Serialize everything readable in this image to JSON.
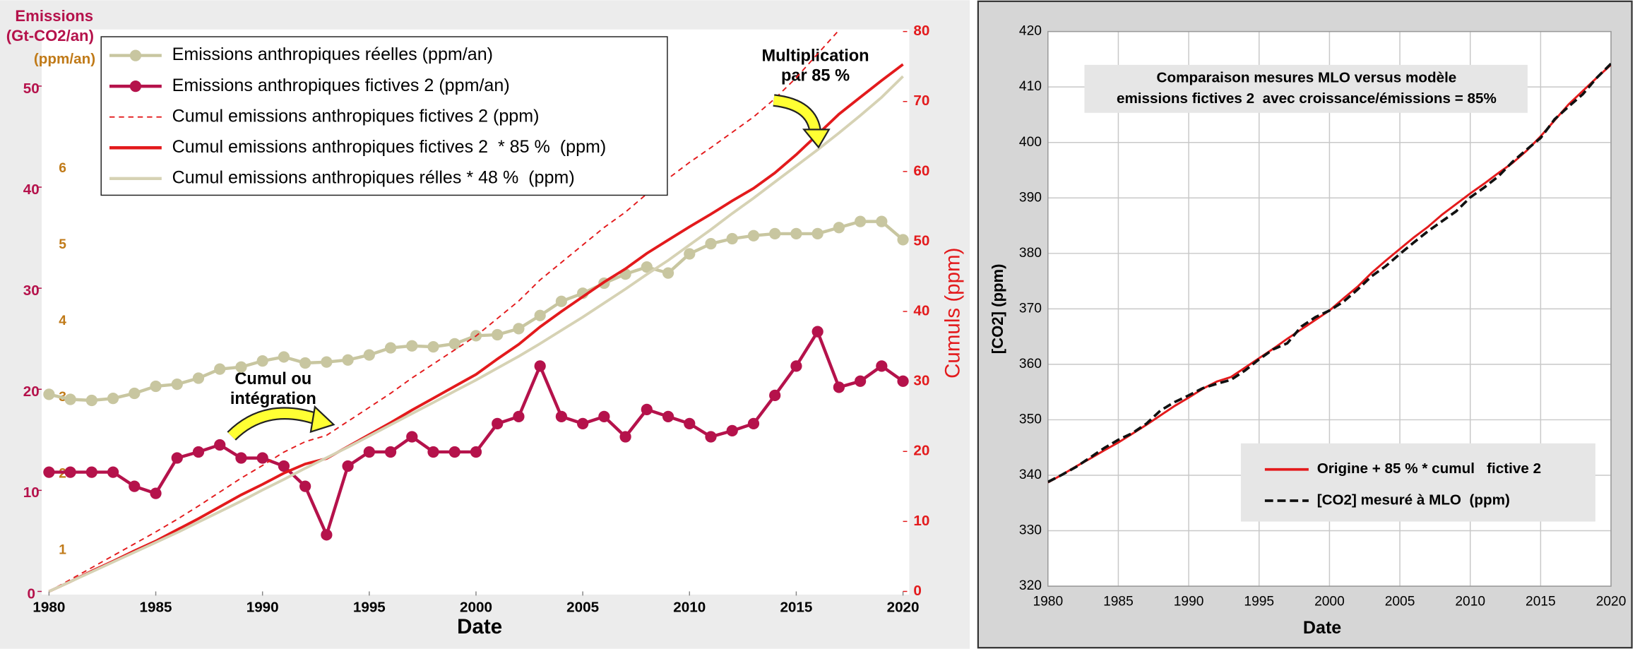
{
  "chart_data": [
    {
      "type": "line",
      "ylabel": [
        "Emissions",
        "(Gt-CO2/an)"
      ],
      "y3label": "(ppm/an)",
      "y2label": "Cumuls (ppm)",
      "xlabel": "Date",
      "annotations": [
        [
          "Cumul ou",
          "intégration"
        ],
        [
          "Multiplication",
          "par 85 %"
        ]
      ],
      "x": [
        1980,
        1981,
        1982,
        1983,
        1984,
        1985,
        1986,
        1987,
        1988,
        1989,
        1990,
        1991,
        1992,
        1993,
        1994,
        1995,
        1996,
        1997,
        1998,
        1999,
        2000,
        2001,
        2002,
        2003,
        2004,
        2005,
        2006,
        2007,
        2008,
        2009,
        2010,
        2011,
        2012,
        2013,
        2014,
        2015,
        2016,
        2017,
        2018,
        2019,
        2020
      ],
      "xlim": [
        1980,
        2020
      ],
      "xticks": [
        1980,
        1985,
        1990,
        1995,
        2000,
        2005,
        2010,
        2015,
        2020
      ],
      "ylim": [
        0,
        55.4
      ],
      "yticks": [
        0,
        10,
        20,
        30,
        40,
        50
      ],
      "y3lim": [
        0.23,
        7.57
      ],
      "y3ticks": [
        1,
        2,
        3,
        4,
        5,
        6
      ],
      "y2lim": [
        0,
        80
      ],
      "y2ticks": [
        0,
        10,
        20,
        30,
        40,
        50,
        60,
        70,
        80
      ],
      "legend": "top-left",
      "series": [
        {
          "name": "Emissions anthropiques réelles (ppm/an)",
          "color": "#c8c6a0",
          "marker": true,
          "values": [
            19.5,
            19.0,
            18.9,
            19.1,
            19.6,
            20.3,
            20.5,
            21.1,
            22.0,
            22.2,
            22.8,
            23.2,
            22.6,
            22.7,
            22.9,
            23.4,
            24.1,
            24.3,
            24.2,
            24.5,
            25.3,
            25.4,
            26.0,
            27.3,
            28.7,
            29.5,
            30.5,
            31.4,
            32.1,
            31.5,
            33.4,
            34.4,
            34.9,
            35.2,
            35.4,
            35.4,
            35.4,
            36.0,
            36.6,
            36.6,
            34.8
          ]
        },
        {
          "name": "Emissions anthropiques fictives 2 (ppm/an)",
          "color": "#b5124b",
          "marker": true,
          "values": [
            11.8,
            11.8,
            11.8,
            11.8,
            10.4,
            9.7,
            13.2,
            13.8,
            14.5,
            13.2,
            13.2,
            12.4,
            10.4,
            5.6,
            12.4,
            13.8,
            13.8,
            15.3,
            13.8,
            13.8,
            13.8,
            16.6,
            17.3,
            22.3,
            17.3,
            16.6,
            17.3,
            15.3,
            18.0,
            17.3,
            16.6,
            15.3,
            15.9,
            16.6,
            19.4,
            22.3,
            25.7,
            20.2,
            20.8,
            22.3,
            20.8
          ]
        },
        {
          "name": "Cumul emissions anthropiques fictives 2 (ppm)",
          "color": "#e31a1c",
          "style": "dashed",
          "axis": "y2",
          "values": [
            0,
            1.7,
            3.4,
            5.1,
            6.8,
            8.5,
            10.3,
            12.2,
            14.2,
            16.2,
            18.0,
            19.9,
            21.4,
            22.3,
            24.3,
            26.3,
            28.3,
            30.5,
            32.5,
            34.5,
            36.5,
            39.0,
            41.5,
            44.5,
            47.0,
            49.5,
            52.0,
            54.2,
            56.8,
            59.0,
            61.3,
            63.4,
            65.6,
            67.8,
            70.4,
            73.4,
            76.8,
            80.2,
            null,
            null,
            null
          ]
        },
        {
          "name": "Cumul emissions anthropiques fictives 2  * 85 %  (ppm)",
          "color": "#e31a1c",
          "axis": "y2",
          "values": [
            0,
            1.4,
            2.9,
            4.3,
            5.8,
            7.2,
            8.8,
            10.4,
            12.1,
            13.8,
            15.3,
            16.9,
            18.2,
            19.0,
            20.7,
            22.4,
            24.1,
            25.9,
            27.6,
            29.3,
            31.0,
            33.2,
            35.3,
            37.8,
            40.0,
            42.1,
            44.2,
            46.1,
            48.3,
            50.2,
            52.1,
            53.9,
            55.8,
            57.6,
            59.8,
            62.4,
            65.3,
            68.2,
            70.6,
            73.0,
            75.3
          ]
        },
        {
          "name": "Cumul emissions anthropiques rélles * 48 %  (ppm)",
          "color": "#d6d2b4",
          "axis": "y2",
          "values": [
            0,
            1.4,
            2.8,
            4.2,
            5.6,
            7.0,
            8.4,
            9.9,
            11.4,
            12.9,
            14.5,
            16.0,
            17.6,
            19.1,
            20.6,
            22.2,
            23.8,
            25.4,
            27.0,
            28.6,
            30.2,
            31.9,
            33.6,
            35.4,
            37.3,
            39.2,
            41.2,
            43.2,
            45.3,
            47.3,
            49.5,
            51.7,
            54.0,
            56.2,
            58.5,
            60.8,
            63.1,
            65.5,
            68.0,
            70.6,
            73.6
          ]
        }
      ]
    },
    {
      "type": "line",
      "title": [
        "Comparaison mesures MLO versus modèle",
        "emissions fictives 2  avec croissance/émissions = 85%"
      ],
      "xlabel": "Date",
      "ylabel": "[CO2] (ppm)",
      "x": [
        1980,
        1981,
        1982,
        1983,
        1984,
        1985,
        1986,
        1987,
        1988,
        1989,
        1990,
        1991,
        1992,
        1993,
        1994,
        1995,
        1996,
        1997,
        1998,
        1999,
        2000,
        2001,
        2002,
        2003,
        2004,
        2005,
        2006,
        2007,
        2008,
        2009,
        2010,
        2011,
        2012,
        2013,
        2014,
        2015,
        2016,
        2017,
        2018,
        2019,
        2020
      ],
      "xlim": [
        1980,
        2020
      ],
      "xticks": [
        1980,
        1985,
        1990,
        1995,
        2000,
        2005,
        2010,
        2015,
        2020
      ],
      "ylim": [
        320,
        420
      ],
      "yticks": [
        320,
        330,
        340,
        350,
        360,
        370,
        380,
        390,
        400,
        410,
        420
      ],
      "grid": true,
      "legend": "bottom-right",
      "series": [
        {
          "name": "Origine + 85 % * cumul   fictive 2",
          "color": "#e31a1c",
          "values": [
            338.7,
            340.1,
            341.6,
            343.0,
            344.5,
            345.9,
            347.5,
            349.1,
            350.8,
            352.5,
            354.0,
            355.6,
            356.9,
            357.7,
            359.4,
            361.1,
            362.8,
            364.6,
            366.3,
            368.0,
            369.7,
            371.9,
            374.0,
            376.5,
            378.7,
            380.8,
            382.9,
            384.8,
            387.0,
            388.9,
            390.8,
            392.6,
            394.5,
            396.3,
            398.5,
            401.1,
            404.0,
            406.9,
            409.3,
            411.7,
            414.0
          ]
        },
        {
          "name": "[CO2] mesuré à MLO  (ppm)",
          "color": "#111111",
          "style": "dashed",
          "values": [
            338.8,
            340.1,
            341.5,
            343.2,
            344.9,
            346.4,
            347.6,
            349.3,
            351.7,
            353.2,
            354.4,
            355.7,
            356.5,
            357.2,
            358.9,
            360.9,
            362.7,
            363.8,
            366.8,
            368.5,
            369.7,
            371.3,
            373.5,
            375.9,
            377.7,
            379.9,
            382.0,
            384.0,
            385.8,
            387.6,
            390.1,
            391.9,
            393.9,
            396.5,
            398.7,
            400.8,
            404.2,
            406.5,
            408.7,
            411.7,
            414.2
          ]
        }
      ]
    }
  ]
}
